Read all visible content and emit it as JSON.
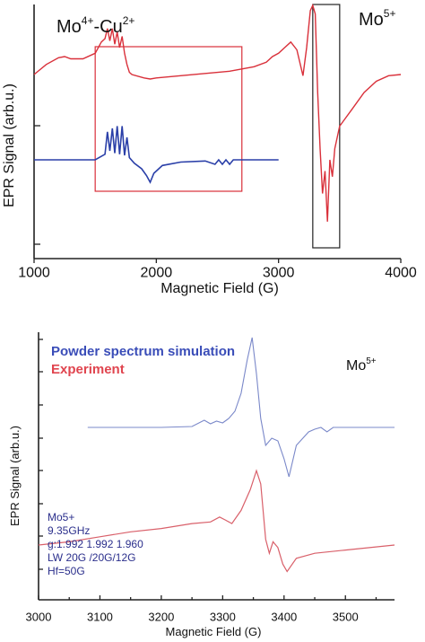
{
  "colors": {
    "experiment": "#d9303a",
    "simulation": "#2a3fa8",
    "box": "#d9303a",
    "box2": "#222222",
    "param_text": "#2b2f8c"
  },
  "chart_data": [
    {
      "type": "line",
      "xlabel": "Magnetic Field (G)",
      "ylabel": "EPR Signal (arb.u.)",
      "xlim": [
        1000,
        4000
      ],
      "x_ticks": [
        1000,
        2000,
        3000,
        4000
      ],
      "annotations": [
        {
          "base": "Mo",
          "sup": "4+",
          "mid": "-Cu",
          "sup2": "2+"
        },
        {
          "base": "Mo",
          "sup": "5+"
        }
      ],
      "highlight_boxes": [
        {
          "x": [
            1500,
            2700
          ],
          "color": "red"
        },
        {
          "x": [
            3280,
            3500
          ],
          "color": "black"
        }
      ],
      "series": [
        {
          "style": "red experimental trace",
          "x": [
            1000,
            1100,
            1200,
            1250,
            1300,
            1400,
            1500,
            1550,
            1580,
            1600,
            1620,
            1640,
            1660,
            1680,
            1700,
            1720,
            1740,
            1760,
            1780,
            1800,
            1900,
            1950,
            2000,
            2200,
            2400,
            2600,
            2700,
            2800,
            2900,
            2950,
            3000,
            3050,
            3100,
            3150,
            3200,
            3230,
            3260,
            3280,
            3300,
            3320,
            3340,
            3360,
            3380,
            3400,
            3420,
            3440,
            3460,
            3480,
            3500,
            3600,
            3700,
            3800,
            3900,
            4000
          ],
          "y": [
            0.36,
            0.45,
            0.51,
            0.52,
            0.5,
            0.5,
            0.55,
            0.65,
            0.68,
            0.77,
            0.66,
            0.77,
            0.63,
            0.74,
            0.6,
            0.7,
            0.55,
            0.45,
            0.38,
            0.36,
            0.33,
            0.32,
            0.33,
            0.35,
            0.37,
            0.39,
            0.41,
            0.43,
            0.47,
            0.52,
            0.55,
            0.6,
            0.65,
            0.58,
            0.35,
            0.6,
            0.93,
            0.98,
            0.9,
            0.2,
            -0.3,
            -0.7,
            -0.5,
            -0.95,
            -0.4,
            -0.55,
            -0.3,
            -0.2,
            -0.1,
            0.05,
            0.2,
            0.3,
            0.35,
            0.36
          ]
        },
        {
          "style": "blue simulated trace",
          "x": [
            1000,
            1500,
            1580,
            1600,
            1620,
            1640,
            1660,
            1680,
            1700,
            1720,
            1740,
            1760,
            1780,
            1820,
            1880,
            1920,
            1950,
            1980,
            2050,
            2200,
            2400,
            2480,
            2510,
            2540,
            2570,
            2600,
            2630,
            2650,
            2700,
            3000
          ],
          "y": [
            0.0,
            0.0,
            0.05,
            0.25,
            0.08,
            0.28,
            0.06,
            0.3,
            0.05,
            0.3,
            0.04,
            0.2,
            0.02,
            -0.03,
            -0.08,
            -0.14,
            -0.2,
            -0.12,
            -0.05,
            -0.02,
            -0.01,
            -0.04,
            0.0,
            -0.04,
            0.0,
            -0.04,
            0.0,
            0.0,
            0.0,
            0.0
          ]
        }
      ]
    },
    {
      "type": "line",
      "xlabel": "Magnetic Field (G)",
      "ylabel": "EPR Signal (arb.u.)",
      "xlim": [
        3000,
        3580
      ],
      "x_ticks": [
        3000,
        3100,
        3200,
        3300,
        3400,
        3500
      ],
      "annotation": {
        "base": "Mo",
        "sup": "5+"
      },
      "legend": [
        {
          "label": "Powder spectrum simulation",
          "color": "blue"
        },
        {
          "label": "Experiment",
          "color": "red"
        }
      ],
      "parameters_text": [
        "Mo5+",
        "9.35GHz",
        "g:1.992 1.992 1.960",
        "LW 20G /20G/12G",
        "Hf=50G"
      ],
      "series": [
        {
          "name": "Powder spectrum simulation",
          "x": [
            3080,
            3200,
            3250,
            3270,
            3280,
            3290,
            3300,
            3310,
            3320,
            3330,
            3340,
            3348,
            3355,
            3362,
            3370,
            3380,
            3390,
            3400,
            3408,
            3420,
            3440,
            3450,
            3460,
            3470,
            3480,
            3500,
            3580
          ],
          "y": [
            0.0,
            0.0,
            0.01,
            0.08,
            0.04,
            0.07,
            0.05,
            0.1,
            0.18,
            0.38,
            0.75,
            1.0,
            0.6,
            0.1,
            -0.2,
            -0.12,
            -0.15,
            -0.35,
            -0.55,
            -0.2,
            -0.05,
            -0.02,
            0.0,
            -0.05,
            0.0,
            0.0,
            0.0
          ]
        },
        {
          "name": "Experiment",
          "x": [
            3000,
            3050,
            3100,
            3150,
            3200,
            3250,
            3280,
            3295,
            3305,
            3315,
            3330,
            3345,
            3355,
            3362,
            3370,
            3376,
            3382,
            3390,
            3398,
            3405,
            3420,
            3450,
            3500,
            3580
          ],
          "y": [
            -0.62,
            -0.58,
            -0.52,
            -0.46,
            -0.42,
            -0.36,
            -0.34,
            -0.28,
            -0.32,
            -0.36,
            -0.2,
            0.05,
            0.28,
            0.12,
            -0.55,
            -0.72,
            -0.58,
            -0.65,
            -0.85,
            -0.94,
            -0.78,
            -0.72,
            -0.68,
            -0.62
          ]
        }
      ]
    }
  ]
}
